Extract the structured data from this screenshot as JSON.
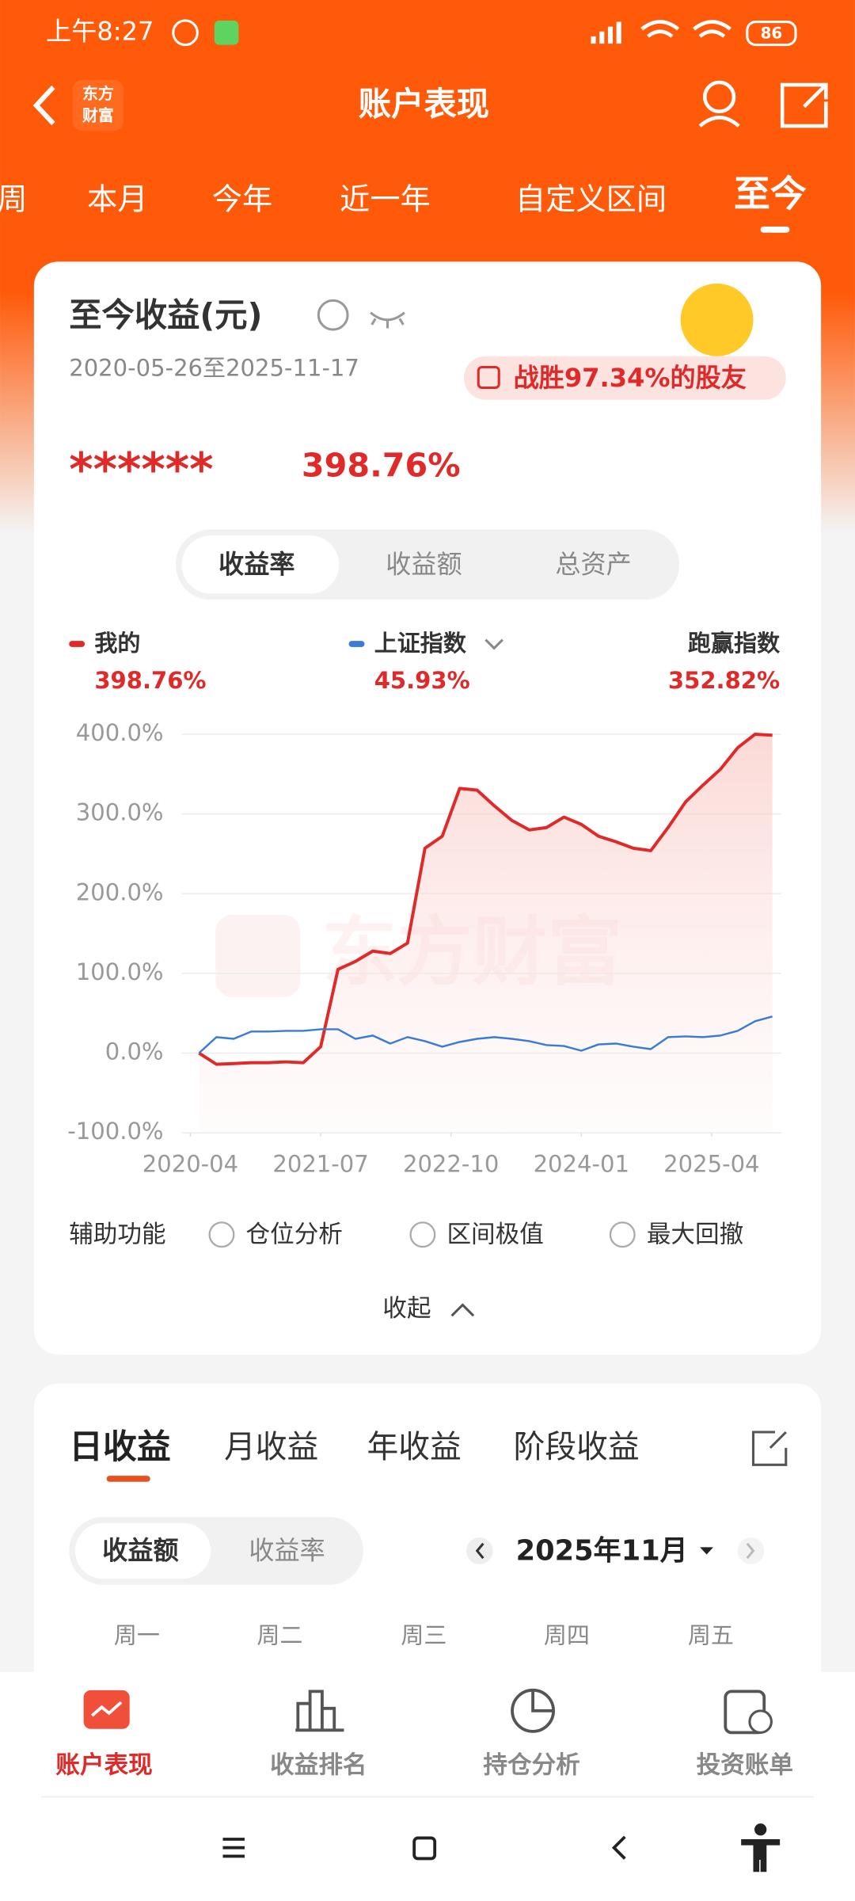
{
  "status_bar": {
    "time": "上午8:27",
    "battery": "86"
  },
  "header": {
    "title": "账户表现",
    "logo": [
      "东方",
      "财富"
    ]
  },
  "period_tabs": [
    "周",
    "本月",
    "今年",
    "近一年",
    "自定义区间",
    "至今"
  ],
  "card": {
    "title": "至今收益(元)",
    "date_range": "2020-05-26至2025-11-17",
    "badge": "战胜97.34%的股友",
    "masked": "******",
    "total_return": "398.76%",
    "toggle": [
      "收益率",
      "收益额",
      "总资产"
    ],
    "legend": [
      {
        "name": "我的",
        "value": "398.76%"
      },
      {
        "name": "上证指数",
        "value": "45.93%"
      },
      {
        "name": "跑赢指数",
        "value": "352.82%"
      }
    ],
    "watermark": "东方财富",
    "aux_label": "辅助功能",
    "aux_options": [
      "仓位分析",
      "区间极值",
      "最大回撤"
    ],
    "collapse": "收起"
  },
  "chart_data": {
    "type": "line",
    "x": [
      "2020-05",
      "2020-07",
      "2020-09",
      "2020-11",
      "2021-01",
      "2021-03",
      "2021-05",
      "2021-07",
      "2021-09",
      "2021-11",
      "2022-01",
      "2022-03",
      "2022-05",
      "2022-07",
      "2022-09",
      "2022-11",
      "2023-01",
      "2023-03",
      "2023-05",
      "2023-07",
      "2023-09",
      "2023-11",
      "2024-01",
      "2024-03",
      "2024-05",
      "2024-07",
      "2024-09",
      "2024-11",
      "2025-01",
      "2025-03",
      "2025-05",
      "2025-07",
      "2025-09",
      "2025-11"
    ],
    "series": [
      {
        "name": "我的",
        "color": "#e02a2a",
        "values": [
          0,
          -14,
          -13,
          -12,
          -12,
          -11,
          -12,
          8,
          105,
          115,
          128,
          125,
          138,
          257,
          272,
          332,
          330,
          310,
          292,
          280,
          283,
          296,
          287,
          272,
          265,
          257,
          254,
          283,
          315,
          336,
          356,
          383,
          400,
          398.76
        ]
      },
      {
        "name": "上证指数",
        "color": "#3a7bd5",
        "values": [
          0,
          20,
          18,
          27,
          27,
          28,
          28,
          30,
          30,
          18,
          22,
          12,
          20,
          15,
          8,
          14,
          18,
          20,
          18,
          15,
          10,
          9,
          3,
          11,
          12,
          8,
          5,
          20,
          21,
          20,
          22,
          28,
          40,
          45.93
        ]
      }
    ],
    "xlim": [
      "2020-03",
      "2025-12"
    ],
    "xticks": [
      "2020-04",
      "2021-07",
      "2022-10",
      "2024-01",
      "2025-04"
    ],
    "ylim": [
      -100,
      400
    ],
    "yticks": [
      {
        "value": 400,
        "label": "400.0%"
      },
      {
        "value": 300,
        "label": "300.0%"
      },
      {
        "value": 200,
        "label": "200.0%"
      },
      {
        "value": 100,
        "label": "100.0%"
      },
      {
        "value": 0,
        "label": "0.0%"
      },
      {
        "value": -100,
        "label": "-100.0%"
      }
    ],
    "grid": true
  },
  "daily": {
    "tabs": [
      "日收益",
      "月收益",
      "年收益",
      "阶段收益"
    ],
    "toggle": [
      "收益额",
      "收益率"
    ],
    "month": "2025年11月",
    "weekdays": [
      "周一",
      "周二",
      "周三",
      "周四",
      "周五"
    ]
  },
  "bottom_nav": [
    "账户表现",
    "收益排名",
    "持仓分析",
    "投资账单"
  ]
}
